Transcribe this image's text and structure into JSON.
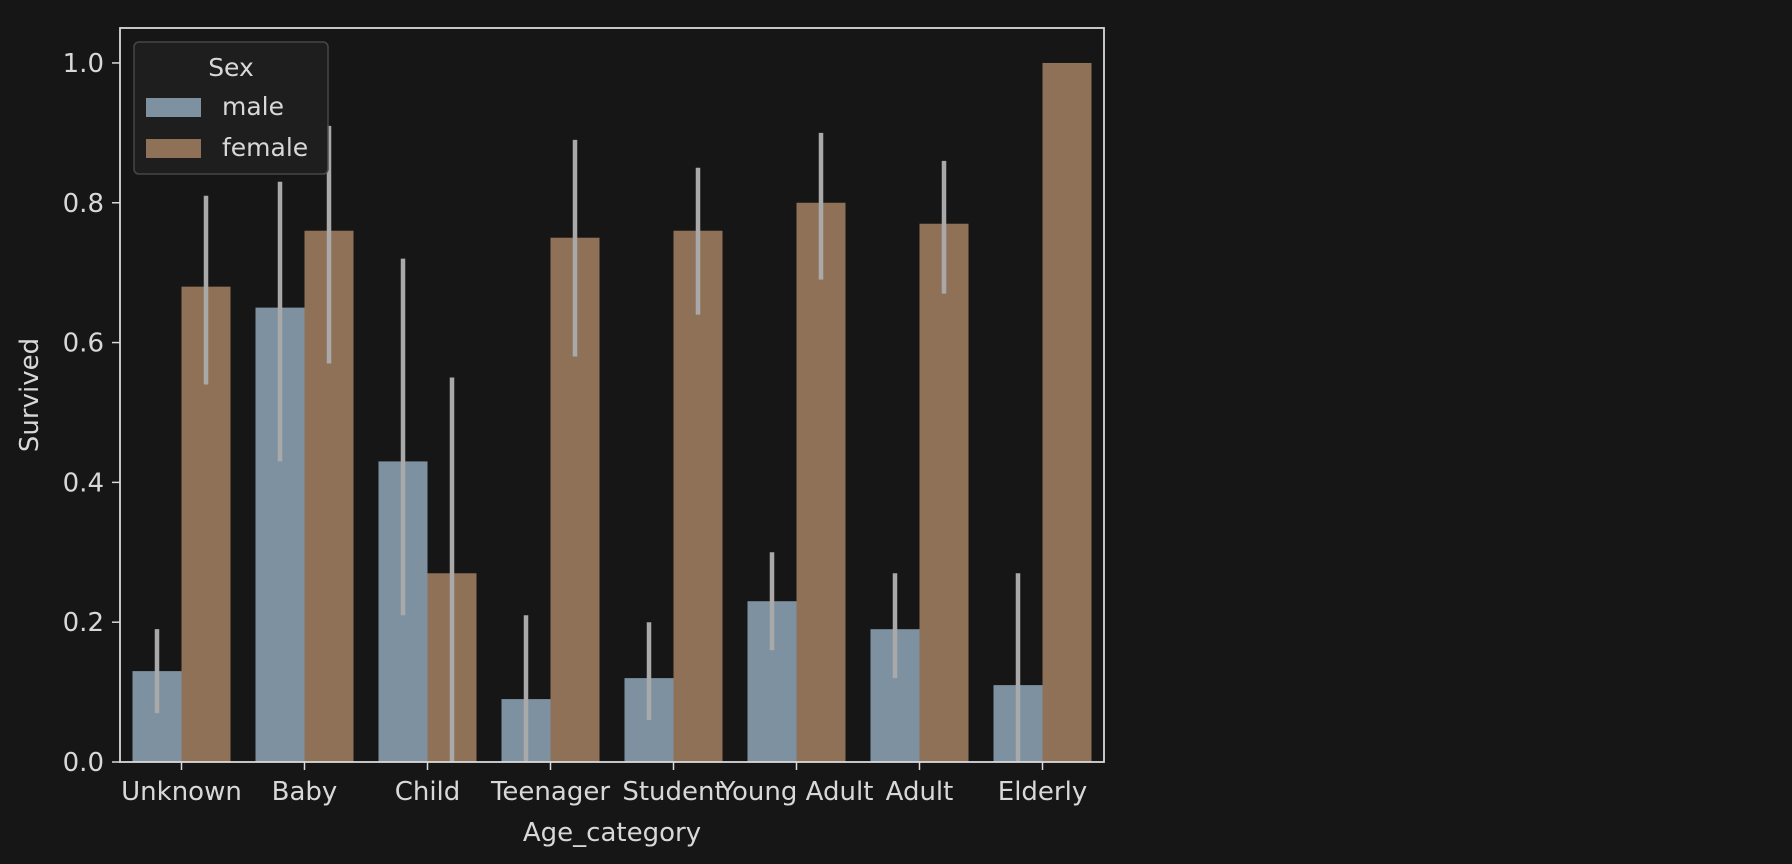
{
  "colors": {
    "background": "#161616",
    "axis": "#d9d9d9",
    "text": "#d8d8d8",
    "male": "#7e91a1",
    "female": "#8f7157",
    "error_bar": "#a9a9a9",
    "legend_bg": "#1f1f1f",
    "legend_border": "#4a4a4a"
  },
  "chart_data": {
    "type": "bar",
    "xlabel": "Age_category",
    "ylabel": "Survived",
    "ylim": [
      0,
      1.05
    ],
    "yticks": [
      "0.0",
      "0.2",
      "0.4",
      "0.6",
      "0.8",
      "1.0"
    ],
    "categories": [
      "Unknown",
      "Baby",
      "Child",
      "Teenager",
      "Student",
      "Young Adult",
      "Adult",
      "Elderly"
    ],
    "legend": {
      "title": "Sex",
      "placement": "top-left"
    },
    "series": [
      {
        "name": "male",
        "color": "#7e91a1",
        "values": [
          0.13,
          0.65,
          0.43,
          0.09,
          0.12,
          0.23,
          0.19,
          0.11
        ],
        "error_low": [
          0.07,
          0.43,
          0.21,
          0.0,
          0.06,
          0.16,
          0.12,
          0.0
        ],
        "error_high": [
          0.19,
          0.83,
          0.72,
          0.21,
          0.2,
          0.3,
          0.27,
          0.27
        ]
      },
      {
        "name": "female",
        "color": "#8f7157",
        "values": [
          0.68,
          0.76,
          0.27,
          0.75,
          0.76,
          0.8,
          0.77,
          1.0
        ],
        "error_low": [
          0.54,
          0.57,
          0.0,
          0.58,
          0.64,
          0.69,
          0.67,
          1.0
        ],
        "error_high": [
          0.81,
          0.91,
          0.55,
          0.89,
          0.85,
          0.9,
          0.86,
          1.0
        ]
      }
    ]
  }
}
